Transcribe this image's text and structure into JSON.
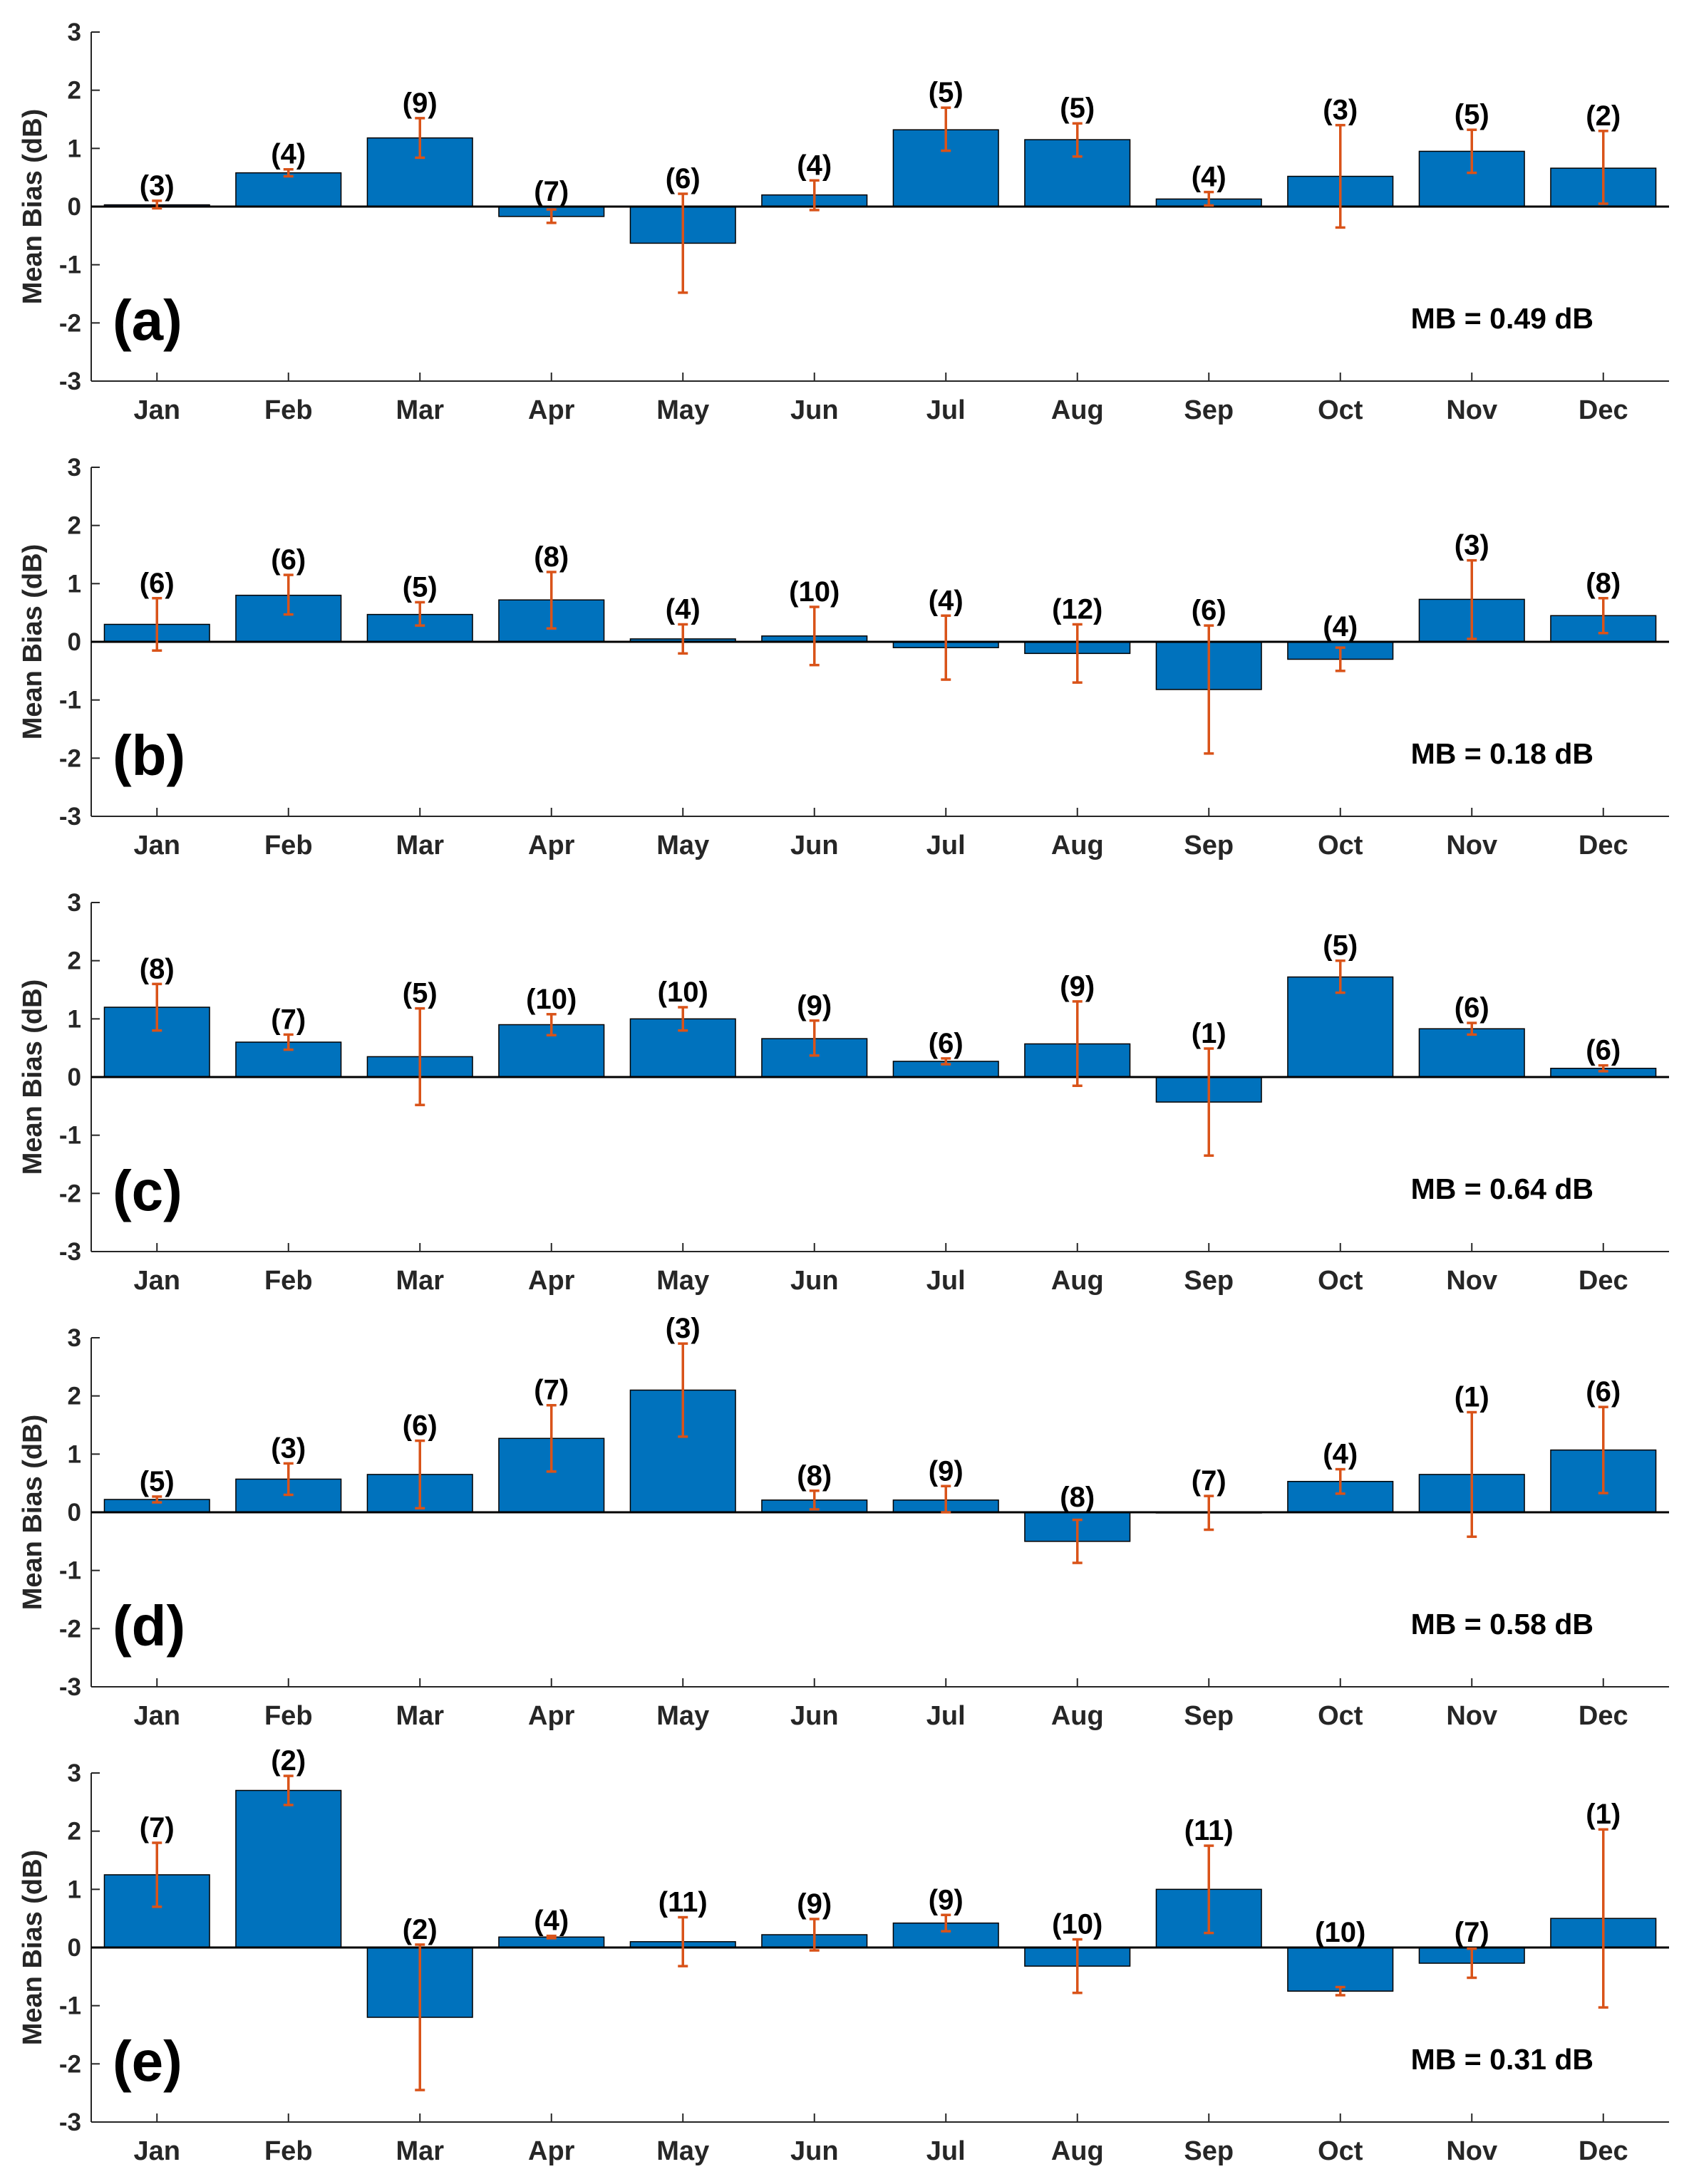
{
  "colors": {
    "bar": "#0072BD",
    "bar_edge": "#000000",
    "error": "#D95319",
    "axis": "#262626",
    "zero_line": "#000000"
  },
  "chart_data": [
    {
      "type": "bar",
      "panel_label": "(a)",
      "annotation": "MB = 0.49 dB",
      "ylabel": "Mean Bias (dB)",
      "ylim": [
        -3,
        3
      ],
      "yticks": [
        "3",
        "2",
        "1",
        "0",
        "-1",
        "-2",
        "-3"
      ],
      "categories": [
        "Jan",
        "Feb",
        "Mar",
        "Apr",
        "May",
        "Jun",
        "Jul",
        "Aug",
        "Sep",
        "Oct",
        "Nov",
        "Dec"
      ],
      "values": [
        0.03,
        0.58,
        1.18,
        -0.17,
        -0.63,
        0.2,
        1.32,
        1.15,
        0.13,
        0.52,
        0.95,
        0.66
      ],
      "error_low": [
        -0.03,
        0.52,
        0.84,
        -0.28,
        -1.48,
        -0.06,
        0.96,
        0.86,
        0.02,
        -0.36,
        0.58,
        0.05
      ],
      "error_high": [
        0.1,
        0.64,
        1.52,
        -0.05,
        0.22,
        0.45,
        1.7,
        1.43,
        0.25,
        1.4,
        1.32,
        1.3
      ],
      "counts": [
        "(3)",
        "(4)",
        "(9)",
        "(7)",
        "(6)",
        "(4)",
        "(5)",
        "(5)",
        "(4)",
        "(3)",
        "(5)",
        "(2)"
      ]
    },
    {
      "type": "bar",
      "panel_label": "(b)",
      "annotation": "MB = 0.18 dB",
      "ylabel": "Mean Bias (dB)",
      "ylim": [
        -3,
        3
      ],
      "yticks": [
        "3",
        "2",
        "1",
        "0",
        "-1",
        "-2",
        "-3"
      ],
      "categories": [
        "Jan",
        "Feb",
        "Mar",
        "Apr",
        "May",
        "Jun",
        "Jul",
        "Aug",
        "Sep",
        "Oct",
        "Nov",
        "Dec"
      ],
      "values": [
        0.3,
        0.8,
        0.47,
        0.72,
        0.05,
        0.1,
        -0.1,
        -0.2,
        -0.82,
        -0.3,
        0.73,
        0.45
      ],
      "error_low": [
        -0.15,
        0.47,
        0.28,
        0.23,
        -0.2,
        -0.4,
        -0.65,
        -0.7,
        -1.92,
        -0.5,
        0.05,
        0.15
      ],
      "error_high": [
        0.75,
        1.15,
        0.68,
        1.2,
        0.3,
        0.6,
        0.45,
        0.3,
        0.28,
        -0.1,
        1.4,
        0.75
      ],
      "counts": [
        "(6)",
        "(6)",
        "(5)",
        "(8)",
        "(4)",
        "(10)",
        "(4)",
        "(12)",
        "(6)",
        "(4)",
        "(3)",
        "(8)"
      ]
    },
    {
      "type": "bar",
      "panel_label": "(c)",
      "annotation": "MB = 0.64 dB",
      "ylabel": "Mean Bias (dB)",
      "ylim": [
        -3,
        3
      ],
      "yticks": [
        "3",
        "2",
        "1",
        "0",
        "-1",
        "-2",
        "-3"
      ],
      "categories": [
        "Jan",
        "Feb",
        "Mar",
        "Apr",
        "May",
        "Jun",
        "Jul",
        "Aug",
        "Sep",
        "Oct",
        "Nov",
        "Dec"
      ],
      "values": [
        1.2,
        0.6,
        0.35,
        0.9,
        1.0,
        0.66,
        0.27,
        0.57,
        -0.43,
        1.72,
        0.83,
        0.15
      ],
      "error_low": [
        0.8,
        0.47,
        -0.48,
        0.72,
        0.8,
        0.37,
        0.22,
        -0.15,
        -1.35,
        1.45,
        0.73,
        0.1
      ],
      "error_high": [
        1.6,
        0.73,
        1.18,
        1.08,
        1.2,
        0.97,
        0.32,
        1.3,
        0.49,
        2.0,
        0.93,
        0.2
      ],
      "counts": [
        "(8)",
        "(7)",
        "(5)",
        "(10)",
        "(10)",
        "(9)",
        "(6)",
        "(9)",
        "(1)",
        "(5)",
        "(6)",
        "(6)"
      ]
    },
    {
      "type": "bar",
      "panel_label": "(d)",
      "annotation": "MB = 0.58 dB",
      "ylabel": "Mean Bias (dB)",
      "ylim": [
        -3,
        3
      ],
      "yticks": [
        "3",
        "2",
        "1",
        "0",
        "-1",
        "-2",
        "-3"
      ],
      "categories": [
        "Jan",
        "Feb",
        "Mar",
        "Apr",
        "May",
        "Jun",
        "Jul",
        "Aug",
        "Sep",
        "Oct",
        "Nov",
        "Dec"
      ],
      "values": [
        0.22,
        0.57,
        0.65,
        1.27,
        2.1,
        0.21,
        0.21,
        -0.5,
        0.0,
        0.53,
        0.65,
        1.07
      ],
      "error_low": [
        0.17,
        0.3,
        0.07,
        0.7,
        1.3,
        0.05,
        0.0,
        -0.87,
        -0.3,
        0.32,
        -0.42,
        0.33
      ],
      "error_high": [
        0.27,
        0.84,
        1.23,
        1.84,
        2.9,
        0.37,
        0.45,
        -0.13,
        0.28,
        0.74,
        1.72,
        1.81
      ],
      "counts": [
        "(5)",
        "(3)",
        "(6)",
        "(7)",
        "(3)",
        "(8)",
        "(9)",
        "(8)",
        "(7)",
        "(4)",
        "(1)",
        "(6)"
      ]
    },
    {
      "type": "bar",
      "panel_label": "(e)",
      "annotation": "MB = 0.31 dB",
      "ylabel": "Mean Bias (dB)",
      "ylim": [
        -3,
        3
      ],
      "yticks": [
        "3",
        "2",
        "1",
        "0",
        "-1",
        "-2",
        "-3"
      ],
      "categories": [
        "Jan",
        "Feb",
        "Mar",
        "Apr",
        "May",
        "Jun",
        "Jul",
        "Aug",
        "Sep",
        "Oct",
        "Nov",
        "Dec"
      ],
      "values": [
        1.25,
        2.7,
        -1.2,
        0.18,
        0.1,
        0.22,
        0.42,
        -0.32,
        1.0,
        -0.75,
        -0.27,
        0.5
      ],
      "error_low": [
        0.7,
        2.45,
        -2.45,
        0.16,
        -0.32,
        -0.05,
        0.28,
        -0.78,
        0.25,
        -0.82,
        -0.52,
        -1.03
      ],
      "error_high": [
        1.8,
        2.95,
        0.05,
        0.2,
        0.52,
        0.49,
        0.56,
        0.14,
        1.75,
        -0.68,
        -0.02,
        2.03
      ],
      "counts": [
        "(7)",
        "(2)",
        "(2)",
        "(4)",
        "(11)",
        "(9)",
        "(9)",
        "(10)",
        "(11)",
        "(10)",
        "(7)",
        "(1)"
      ]
    }
  ]
}
